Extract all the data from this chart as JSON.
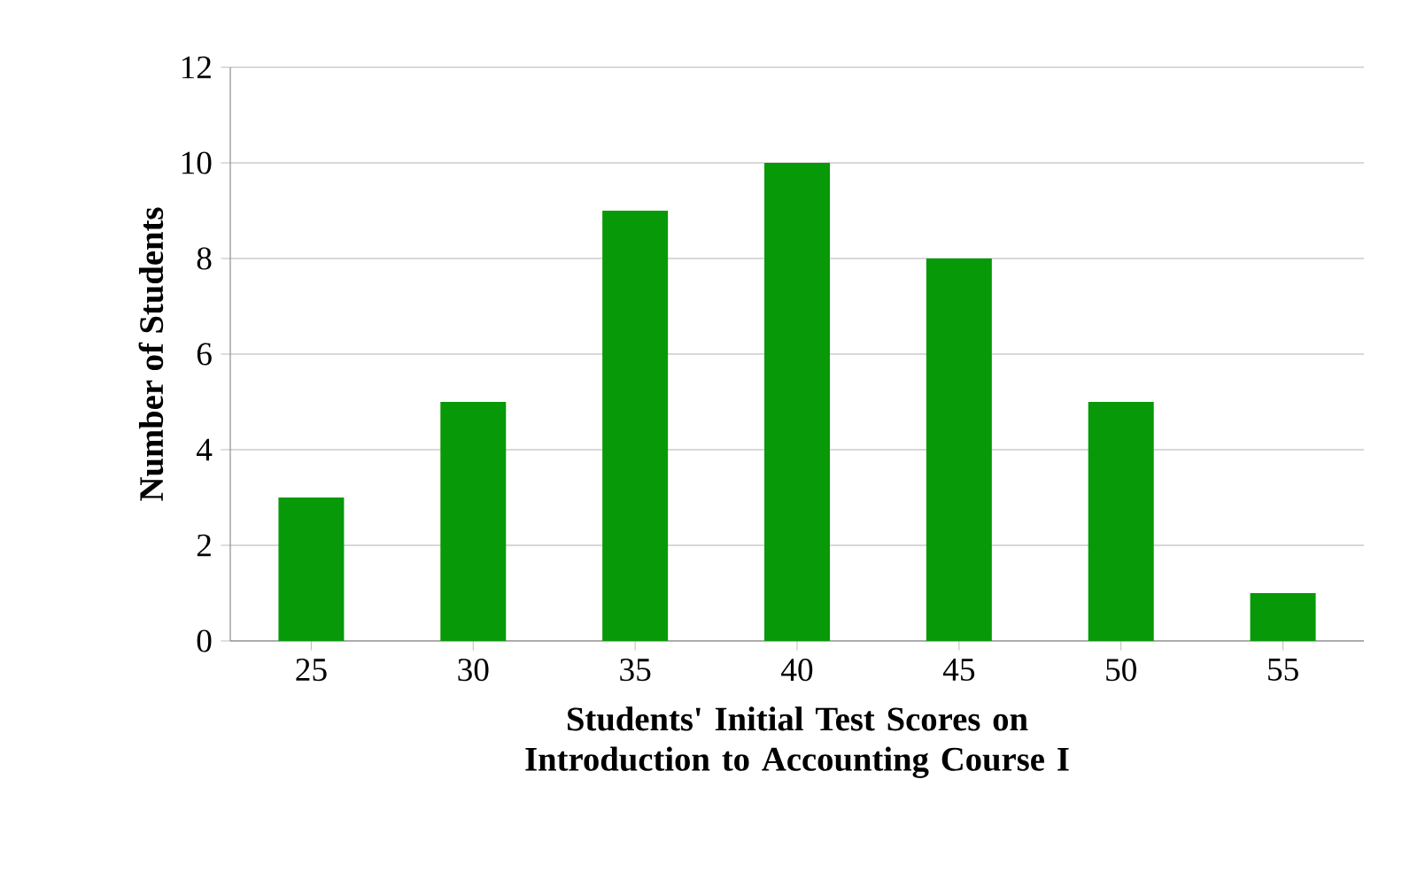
{
  "chart_data": {
    "type": "bar",
    "xlabel": "Students' Initial Test Scores on Introduction to Accounting Course I",
    "ylabel": "Number of Students",
    "categories": [
      "25",
      "30",
      "35",
      "40",
      "45",
      "50",
      "55"
    ],
    "values": [
      3,
      5,
      9,
      10,
      8,
      5,
      1
    ],
    "color": "#079907",
    "ylim": [
      0,
      12
    ],
    "yticks": [
      0,
      2,
      4,
      6,
      8,
      10,
      12
    ],
    "grid": "y"
  }
}
